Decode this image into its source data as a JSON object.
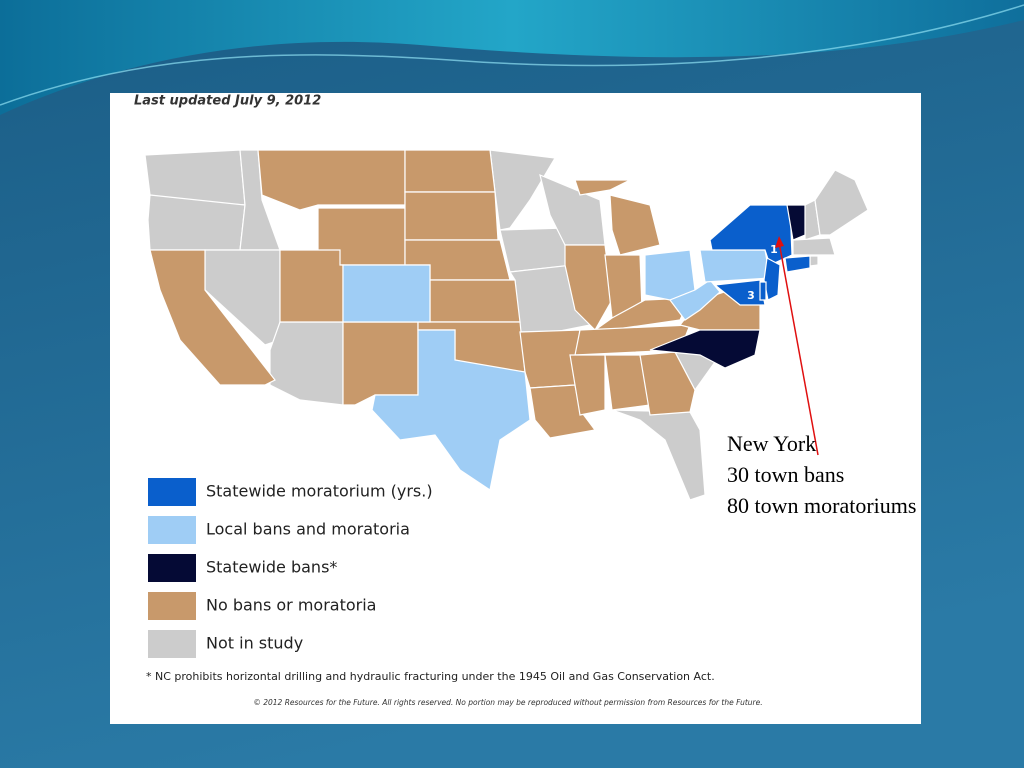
{
  "header": {
    "updated": "Last updated July 9, 2012"
  },
  "legend": {
    "items": [
      {
        "label": "Statewide moratorium (yrs.)"
      },
      {
        "label": "Local bans and moratoria"
      },
      {
        "label": "Statewide bans*"
      },
      {
        "label": "No bans or moratoria"
      },
      {
        "label": "Not in study"
      }
    ]
  },
  "map_labels": [
    "1",
    "3"
  ],
  "footnote": "* NC prohibits horizontal drilling and hydraulic fracturing under the 1945 Oil and Gas Conservation Act.",
  "copyright": "© 2012 Resources for the Future. All rights reserved. No portion may be reproduced without permission from Resources for the Future.",
  "annotation": {
    "lines": [
      "New York",
      "30 town bans",
      "80 town moratoriums"
    ]
  }
}
